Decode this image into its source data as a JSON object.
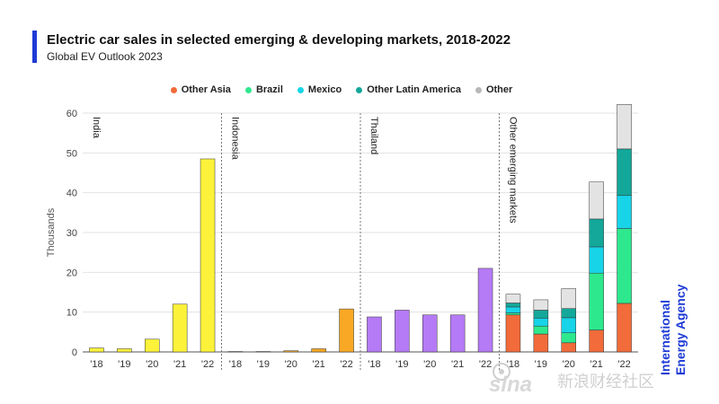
{
  "header": {
    "title": "Electric car sales in selected emerging & developing markets, 2018-2022",
    "subtitle": "Global EV Outlook 2023"
  },
  "legend": [
    {
      "label": "Other Asia",
      "color": "#f26b3a"
    },
    {
      "label": "Brazil",
      "color": "#2ee88e"
    },
    {
      "label": "Mexico",
      "color": "#17d4e8"
    },
    {
      "label": "Other Latin America",
      "color": "#13a89a"
    },
    {
      "label": "Other",
      "color": "#b8b8b8"
    }
  ],
  "logo_text": [
    "International",
    "Energy Agency"
  ],
  "watermark_text": {
    "brand": "sina",
    "cn": "新浪财经社区"
  },
  "chart_data": {
    "type": "bar",
    "ylabel": "Thousands",
    "ylim": [
      0,
      60
    ],
    "yticks": [
      0,
      10,
      20,
      30,
      40,
      50,
      60
    ],
    "grid": true,
    "legend_position": "top",
    "groups": [
      {
        "name": "India",
        "color": "#fcf23a",
        "categories": [
          "'18",
          "'19",
          "'20",
          "'21",
          "'22"
        ],
        "values": [
          1.0,
          0.8,
          3.2,
          12.0,
          48.5
        ]
      },
      {
        "name": "Indonesia",
        "color": "#f9a825",
        "categories": [
          "'18",
          "'19",
          "'20",
          "'21",
          "'22"
        ],
        "values": [
          0.1,
          0.1,
          0.3,
          0.8,
          10.8
        ]
      },
      {
        "name": "Thailand",
        "color": "#b57af5",
        "categories": [
          "'18",
          "'19",
          "'20",
          "'21",
          "'22"
        ],
        "values": [
          8.8,
          10.5,
          9.3,
          9.3,
          21.0
        ]
      },
      {
        "name": "Other emerging markets",
        "categories": [
          "'18",
          "'19",
          "'20",
          "'21",
          "'22"
        ],
        "series": [
          {
            "name": "Other Asia",
            "color": "#f26b3a",
            "values": [
              9.3,
              4.5,
              2.3,
              5.5,
              12.2
            ]
          },
          {
            "name": "Brazil",
            "color": "#2ee88e",
            "values": [
              0.5,
              2.0,
              2.5,
              14.3,
              18.8
            ]
          },
          {
            "name": "Mexico",
            "color": "#17d4e8",
            "values": [
              1.5,
              2.0,
              3.8,
              6.6,
              8.3
            ]
          },
          {
            "name": "Other Latin America",
            "color": "#13a89a",
            "values": [
              1.0,
              2.0,
              2.3,
              7.0,
              11.7
            ]
          },
          {
            "name": "Other",
            "color": "#e3e3e3",
            "values": [
              2.2,
              2.6,
              5.0,
              9.3,
              11.2
            ]
          }
        ]
      }
    ]
  }
}
